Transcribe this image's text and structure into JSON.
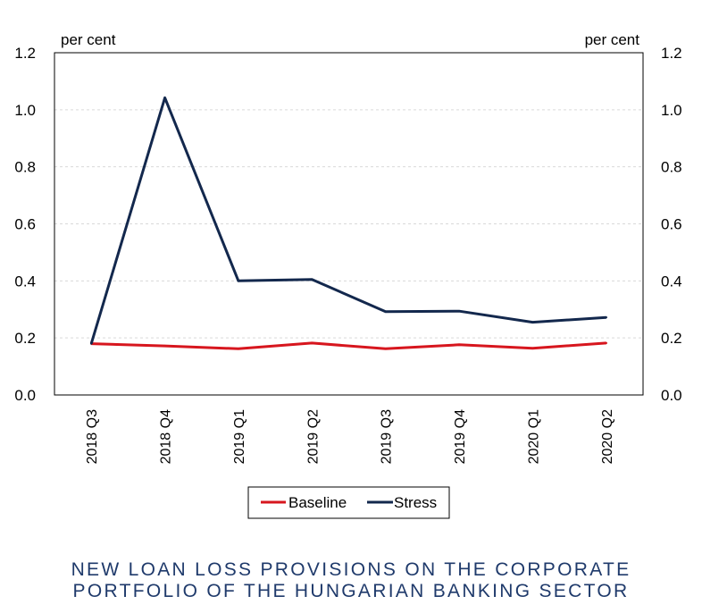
{
  "chart_data": {
    "type": "line",
    "categories": [
      "2018 Q3",
      "2018 Q4",
      "2019 Q1",
      "2019 Q2",
      "2019 Q3",
      "2019 Q4",
      "2020 Q1",
      "2020 Q2"
    ],
    "series": [
      {
        "name": "Baseline",
        "color": "#d7161e",
        "values": [
          0.18,
          0.172,
          0.162,
          0.182,
          0.162,
          0.176,
          0.164,
          0.182
        ]
      },
      {
        "name": "Stress",
        "color": "#13284d",
        "values": [
          0.18,
          1.042,
          0.4,
          0.405,
          0.292,
          0.294,
          0.255,
          0.272
        ]
      }
    ],
    "ylim": [
      0,
      1.2
    ],
    "yticks": [
      "0.0",
      "0.2",
      "0.4",
      "0.6",
      "0.8",
      "1.0",
      "1.2"
    ],
    "left_unit": "per cent",
    "right_unit": "per cent",
    "grid": true,
    "legend_position": "bottom",
    "title_color": "#1f3a6b",
    "title_lines": [
      "NEW LOAN LOSS PROVISIONS ON THE CORPORATE",
      "PORTFOLIO OF THE HUNGARIAN BANKING SECTOR"
    ]
  }
}
